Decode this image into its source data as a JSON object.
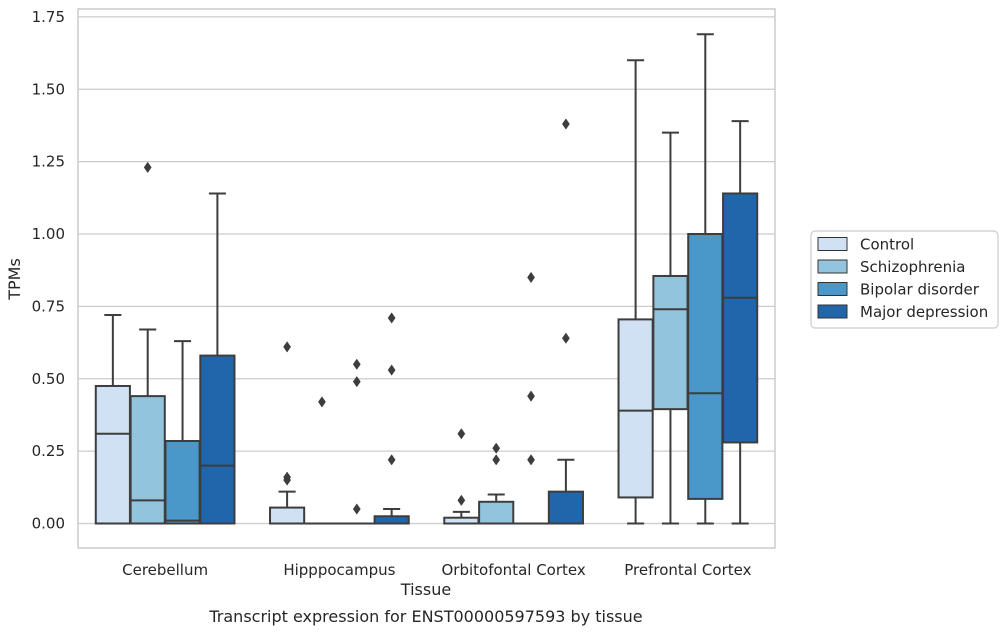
{
  "chart_data": {
    "type": "boxplot",
    "xlabel": "Tissue",
    "ylabel": "TPMs",
    "caption": "Transcript expression for ENST00000597593 by tissue",
    "ylim": [
      -0.08,
      1.77
    ],
    "yticks": [
      "0.00",
      "0.25",
      "0.50",
      "0.75",
      "1.00",
      "1.25",
      "1.50",
      "1.75"
    ],
    "grid": "horizontal",
    "legend_position": "right",
    "categories": [
      "Cerebellum",
      "Hipppocampus",
      "Orbitofontal Cortex",
      "Prefrontal Cortex"
    ],
    "series": [
      {
        "name": "Control",
        "color": "#cfe1f2",
        "boxes": [
          {
            "whislo": 0.0,
            "q1": 0.0,
            "med": 0.31,
            "q3": 0.475,
            "whishi": 0.72,
            "fliers": []
          },
          {
            "whislo": 0.0,
            "q1": 0.0,
            "med": 0.0,
            "q3": 0.055,
            "whishi": 0.11,
            "fliers": [
              0.61,
              0.16,
              0.15
            ]
          },
          {
            "whislo": 0.0,
            "q1": 0.0,
            "med": 0.0,
            "q3": 0.02,
            "whishi": 0.04,
            "fliers": [
              0.31,
              0.08
            ]
          },
          {
            "whislo": 0.0,
            "q1": 0.09,
            "med": 0.39,
            "q3": 0.705,
            "whishi": 1.6,
            "fliers": []
          }
        ]
      },
      {
        "name": "Schizophrenia",
        "color": "#93c4de",
        "boxes": [
          {
            "whislo": 0.0,
            "q1": 0.0,
            "med": 0.08,
            "q3": 0.44,
            "whishi": 0.67,
            "fliers": [
              1.23
            ]
          },
          {
            "whislo": 0.0,
            "q1": 0.0,
            "med": 0.0,
            "q3": 0.0,
            "whishi": 0.0,
            "fliers": [
              0.42
            ]
          },
          {
            "whislo": 0.0,
            "q1": 0.0,
            "med": 0.0,
            "q3": 0.075,
            "whishi": 0.1,
            "fliers": [
              0.26,
              0.22
            ]
          },
          {
            "whislo": 0.0,
            "q1": 0.395,
            "med": 0.74,
            "q3": 0.855,
            "whishi": 1.35,
            "fliers": []
          }
        ]
      },
      {
        "name": "Bipolar disorder",
        "color": "#4a98c9",
        "boxes": [
          {
            "whislo": 0.0,
            "q1": 0.0,
            "med": 0.01,
            "q3": 0.285,
            "whishi": 0.63,
            "fliers": []
          },
          {
            "whislo": 0.0,
            "q1": 0.0,
            "med": 0.0,
            "q3": 0.0,
            "whishi": 0.0,
            "fliers": [
              0.55,
              0.49,
              0.05
            ]
          },
          {
            "whislo": 0.0,
            "q1": 0.0,
            "med": 0.0,
            "q3": 0.0,
            "whishi": 0.0,
            "fliers": [
              0.85,
              0.44,
              0.22
            ]
          },
          {
            "whislo": 0.0,
            "q1": 0.085,
            "med": 0.45,
            "q3": 1.0,
            "whishi": 1.69,
            "fliers": []
          }
        ]
      },
      {
        "name": "Major depression",
        "color": "#2166ab",
        "boxes": [
          {
            "whislo": 0.0,
            "q1": 0.0,
            "med": 0.2,
            "q3": 0.58,
            "whishi": 1.14,
            "fliers": []
          },
          {
            "whislo": 0.0,
            "q1": 0.0,
            "med": 0.0,
            "q3": 0.025,
            "whishi": 0.05,
            "fliers": [
              0.71,
              0.53,
              0.22
            ]
          },
          {
            "whislo": 0.0,
            "q1": 0.0,
            "med": 0.0,
            "q3": 0.11,
            "whishi": 0.22,
            "fliers": [
              1.38,
              0.64
            ]
          },
          {
            "whislo": 0.0,
            "q1": 0.28,
            "med": 0.78,
            "q3": 1.14,
            "whishi": 1.39,
            "fliers": []
          }
        ]
      }
    ]
  }
}
